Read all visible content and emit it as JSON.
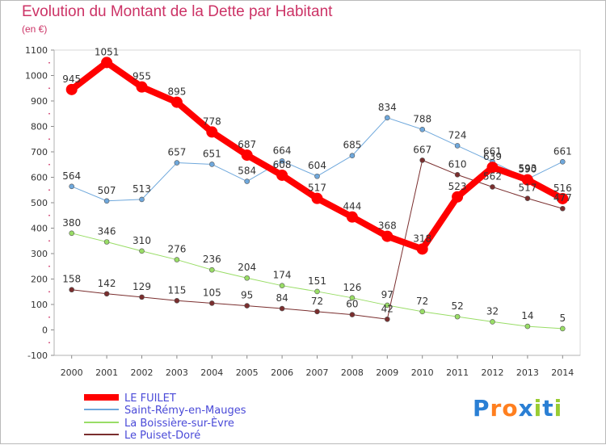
{
  "chart_data": {
    "type": "line",
    "title": "Evolution du Montant de la Dette par Habitant",
    "subtitle": "(en €)",
    "xlabel": "",
    "ylabel": "",
    "ylim": [
      -100,
      1100
    ],
    "yticks": [
      -100,
      0,
      100,
      200,
      300,
      400,
      500,
      600,
      700,
      800,
      900,
      1000,
      1100
    ],
    "categories": [
      "2000",
      "2001",
      "2002",
      "2003",
      "2004",
      "2005",
      "2006",
      "2007",
      "2008",
      "2009",
      "2010",
      "2011",
      "2012",
      "2013",
      "2014"
    ],
    "series": [
      {
        "name": "LE FUILET",
        "color": "#ff0000",
        "width": 8,
        "marker": 7,
        "values": [
          945,
          1051,
          955,
          895,
          778,
          687,
          608,
          517,
          444,
          368,
          318,
          523,
          639,
          590,
          516
        ]
      },
      {
        "name": "Saint-Rémy-en-Mauges",
        "color": "#6fa8dc",
        "width": 1,
        "marker": 3,
        "values": [
          564,
          507,
          513,
          657,
          651,
          584,
          664,
          604,
          685,
          834,
          788,
          724,
          661,
          593,
          661
        ]
      },
      {
        "name": "La Boissière-sur-Èvre",
        "color": "#99dd66",
        "width": 1,
        "marker": 3,
        "values": [
          380,
          346,
          310,
          276,
          236,
          204,
          174,
          151,
          126,
          97,
          72,
          52,
          32,
          14,
          5
        ]
      },
      {
        "name": "Le Puiset-Doré",
        "color": "#7a2e2e",
        "width": 1,
        "marker": 3,
        "values": [
          158,
          142,
          129,
          115,
          105,
          95,
          84,
          72,
          60,
          42,
          667,
          610,
          562,
          517,
          477
        ]
      }
    ],
    "legend_position": "bottom-left"
  },
  "logo_text": "Proxiti"
}
